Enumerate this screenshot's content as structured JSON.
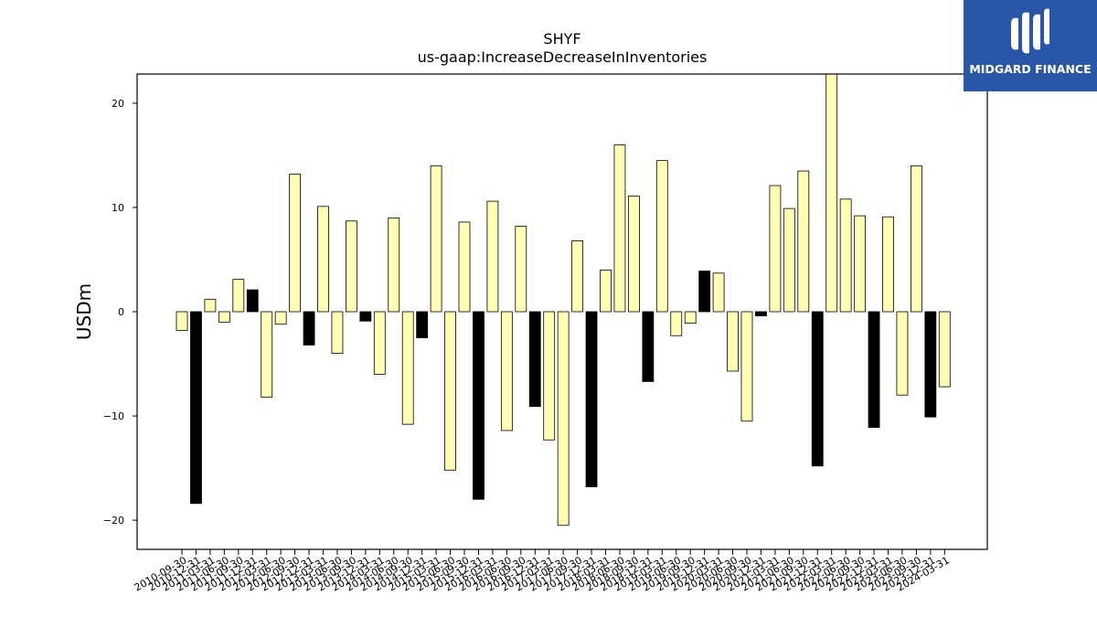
{
  "brand": {
    "name": "MIDGARD FINANCE",
    "bg_color": "#2a56a8"
  },
  "chart_data": {
    "type": "bar",
    "title": "SHYF",
    "subtitle": "us-gaap:IncreaseDecreaseInInventories",
    "xlabel": "",
    "ylabel": "USDm",
    "ylim": [
      -22.8,
      22.8
    ],
    "yticks": [
      -20,
      -10,
      0,
      10,
      20
    ],
    "grid": false,
    "colors": {
      "fill_default": "#ffffb3",
      "fill_highlight": "#000000",
      "edge": "#000000"
    },
    "categories": [
      "2010-09-30",
      "2010-12-31",
      "2011-03-31",
      "2011-06-30",
      "2011-09-30",
      "2011-12-31",
      "2012-03-31",
      "2012-06-30",
      "2012-09-30",
      "2012-12-31",
      "2013-03-31",
      "2013-06-30",
      "2013-09-30",
      "2013-12-31",
      "2014-03-31",
      "2014-06-30",
      "2014-09-30",
      "2014-12-31",
      "2015-03-31",
      "2015-06-30",
      "2015-09-30",
      "2015-12-31",
      "2016-03-31",
      "2016-06-30",
      "2016-09-30",
      "2016-12-31",
      "2017-03-31",
      "2017-06-30",
      "2017-09-30",
      "2017-12-31",
      "2018-03-31",
      "2018-06-30",
      "2018-09-30",
      "2018-12-31",
      "2019-03-31",
      "2019-06-30",
      "2019-09-30",
      "2019-12-31",
      "2020-03-31",
      "2020-06-30",
      "2020-09-30",
      "2020-12-31",
      "2021-03-31",
      "2021-06-30",
      "2021-09-30",
      "2021-12-31",
      "2022-03-31",
      "2022-06-30",
      "2022-09-30",
      "2022-12-31",
      "2023-03-31",
      "2023-06-30",
      "2023-09-30",
      "2023-12-31",
      "2024-03-31"
    ],
    "tick_labels": [
      "2010-09-30",
      "2010-12-31",
      "2011-03-31",
      "2011-06-30",
      "2011-09-30",
      "2011-12-31",
      "2012-03-31",
      "2012-06-30",
      "2012-09-30",
      "2012-12-31",
      "2013-03-31",
      "2013-06-30",
      "2013-09-30",
      "2013-12-31",
      "2014-03-31",
      "2014-06-30",
      "2014-09-30",
      "2014-12-31",
      "2015-03-31",
      "2015-06-30",
      "2015-09-30",
      "2015-12-31",
      "2016-03-31",
      "2016-06-30",
      "2016-09-30",
      "2016-12-31",
      "2017-03-31",
      "2017-06-30",
      "2017-09-30",
      "2017-12-31",
      "2018-03-31",
      "2018-06-30",
      "2018-09-30",
      "2018-12-31",
      "2019-03-31",
      "2019-06-30",
      "2019-09-30",
      "2019-12-31",
      "2020-03-31",
      "2020-06-30",
      "2020-09-30",
      "2020-12-31",
      "2021-03-31",
      "2021-06-30",
      "2021-09-30",
      "2021-12-31",
      "2022-03-31",
      "2022-06-30",
      "2022-09-30",
      "2022-12-31",
      "2023-03-31",
      "2023-06-30",
      "2023-09-30",
      "2023-12-31",
      "2024-03-31"
    ],
    "values": [
      -1.8,
      -18.4,
      1.2,
      -1.0,
      3.1,
      2.1,
      -8.2,
      -1.2,
      13.2,
      -3.2,
      10.1,
      -4.0,
      8.7,
      -0.9,
      -6.0,
      9.0,
      -10.8,
      -2.5,
      14.0,
      -15.2,
      8.6,
      -18.0,
      10.6,
      -11.4,
      8.2,
      -9.1,
      -12.3,
      -20.5,
      6.8,
      -16.8,
      4.0,
      16.0,
      11.1,
      -6.7,
      14.5,
      -2.3,
      -1.1,
      3.9,
      3.7,
      -5.7,
      -10.5,
      -0.4,
      12.1,
      9.9,
      13.5,
      -14.8,
      22.8,
      10.8,
      9.2,
      -11.1,
      9.1,
      -8.0,
      14.0,
      -10.1,
      -7.2
    ],
    "highlight": [
      false,
      true,
      false,
      false,
      false,
      true,
      false,
      false,
      false,
      true,
      false,
      false,
      false,
      true,
      false,
      false,
      false,
      true,
      false,
      false,
      false,
      true,
      false,
      false,
      false,
      true,
      false,
      false,
      false,
      true,
      false,
      false,
      false,
      true,
      false,
      false,
      false,
      true,
      false,
      false,
      false,
      true,
      false,
      false,
      false,
      true,
      false,
      false,
      false,
      true,
      false,
      false,
      false,
      true,
      false
    ]
  }
}
